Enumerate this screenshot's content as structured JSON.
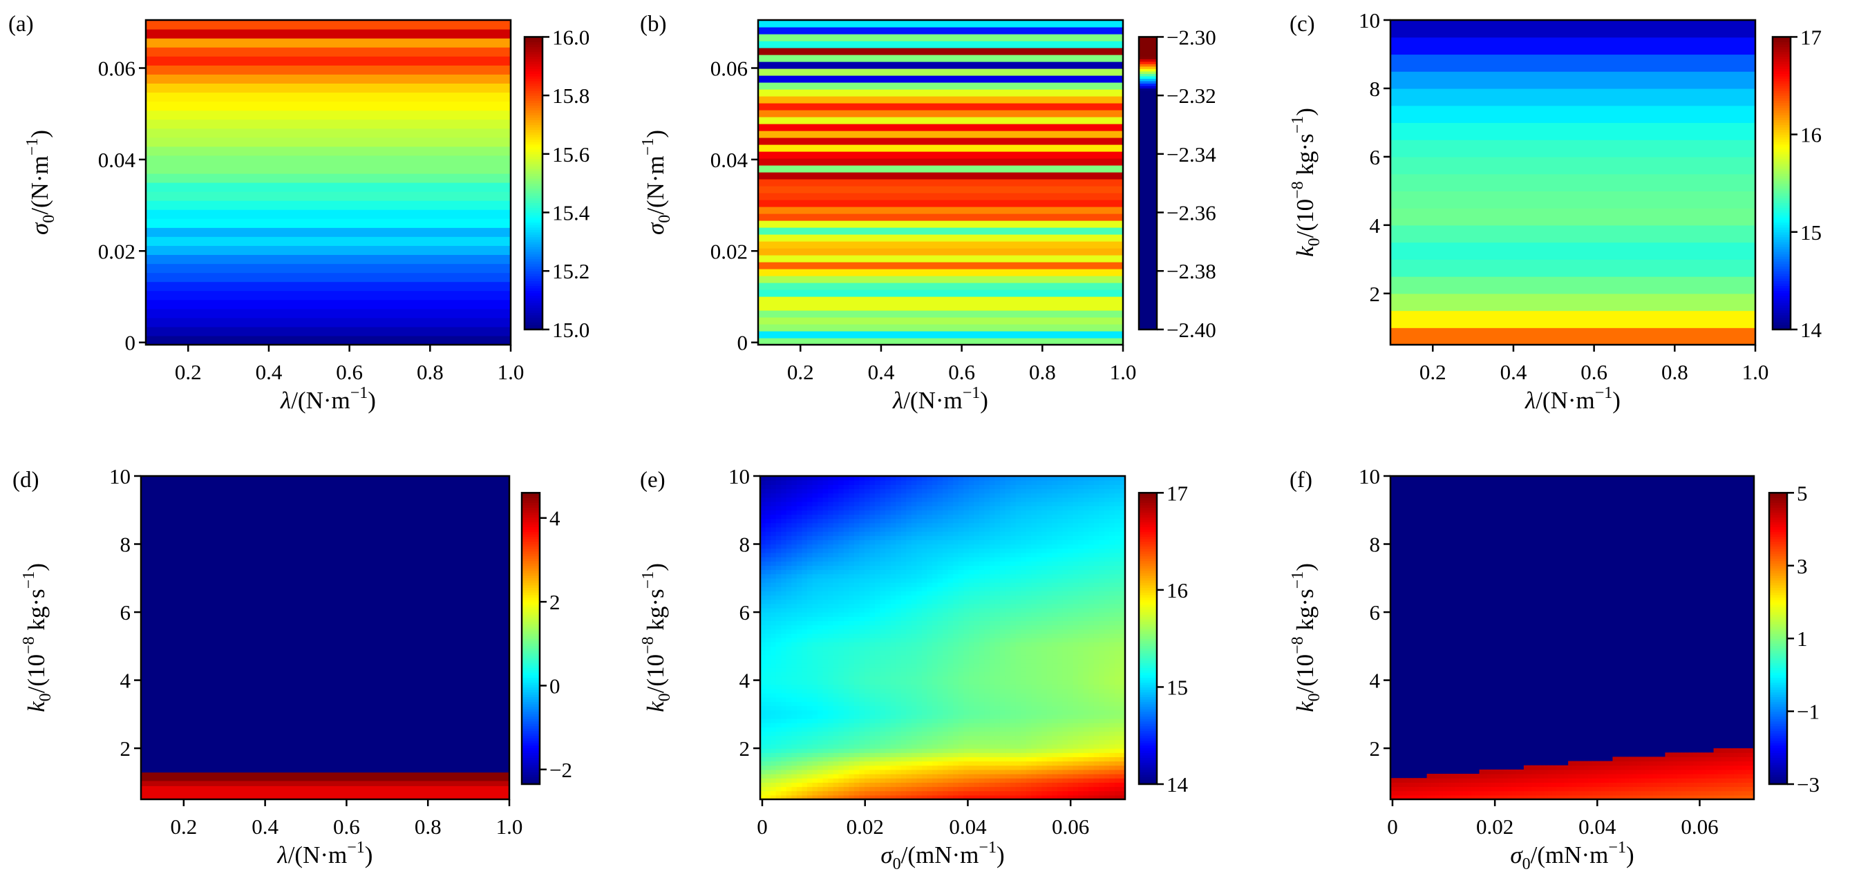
{
  "chart_data": [
    {
      "panel": "(a)",
      "type": "heatmap",
      "colormap": "jet",
      "mode": "rows",
      "xlabel": [
        {
          "t": "λ",
          "s": "i"
        },
        {
          "t": "/(N·m"
        },
        {
          "t": "−1",
          "s": "sup"
        },
        {
          "t": ")"
        }
      ],
      "ylabel": [
        {
          "t": "σ",
          "s": "i"
        },
        {
          "t": "0",
          "s": "sub"
        },
        {
          "t": "/(N·m"
        },
        {
          "t": "−1",
          "s": "sup"
        },
        {
          "t": ")"
        }
      ],
      "xlim": [
        0.095,
        1.0
      ],
      "ylim": [
        -0.0005,
        0.0705
      ],
      "xticks": [
        0.2,
        0.4,
        0.6,
        0.8,
        1.0
      ],
      "xticklabels": [
        "0.2",
        "0.4",
        "0.6",
        "0.8",
        "1.0"
      ],
      "yticks": [
        0,
        0.02,
        0.04,
        0.06
      ],
      "yticklabels": [
        "0",
        "0.02",
        "0.04",
        "0.06"
      ],
      "clim": [
        15.0,
        16.0
      ],
      "cticks": [
        15.0,
        15.2,
        15.4,
        15.6,
        15.8,
        16.0
      ],
      "cticklabels": [
        "15.0",
        "15.2",
        "15.4",
        "15.6",
        "15.8",
        "16.0"
      ],
      "row_values_bottom_to_top": [
        15.02,
        15.05,
        15.08,
        15.1,
        15.12,
        15.14,
        15.16,
        15.2,
        15.22,
        15.25,
        15.3,
        15.34,
        15.3,
        15.37,
        15.36,
        15.4,
        15.43,
        15.42,
        15.47,
        15.5,
        15.5,
        15.52,
        15.55,
        15.56,
        15.58,
        15.6,
        15.63,
        15.64,
        15.67,
        15.72,
        15.78,
        15.84,
        15.8,
        15.72,
        15.92,
        15.8
      ]
    },
    {
      "panel": "(b)",
      "type": "heatmap",
      "colormap": "jet",
      "mode": "rows",
      "color_transition_range": [
        -2.318,
        -2.307
      ],
      "xlabel": [
        {
          "t": "λ",
          "s": "i"
        },
        {
          "t": "/(N·m"
        },
        {
          "t": "−1",
          "s": "sup"
        },
        {
          "t": ")"
        }
      ],
      "ylabel": [
        {
          "t": "σ",
          "s": "i"
        },
        {
          "t": "0",
          "s": "sub"
        },
        {
          "t": "/(N·m"
        },
        {
          "t": "−1",
          "s": "sup"
        },
        {
          "t": ")"
        }
      ],
      "xlim": [
        0.095,
        1.0
      ],
      "ylim": [
        -0.0005,
        0.0705
      ],
      "xticks": [
        0.2,
        0.4,
        0.6,
        0.8,
        1.0
      ],
      "xticklabels": [
        "0.2",
        "0.4",
        "0.6",
        "0.8",
        "1.0"
      ],
      "yticks": [
        0,
        0.02,
        0.04,
        0.06
      ],
      "yticklabels": [
        "0",
        "0.02",
        "0.04",
        "0.06"
      ],
      "clim": [
        -2.4,
        -2.3
      ],
      "cticks": [
        -2.3,
        -2.32,
        -2.34,
        -2.36,
        -2.38,
        -2.4
      ],
      "cticklabels": [
        "−2.30",
        "−2.32",
        "−2.34",
        "−2.36",
        "−2.38",
        "−2.40"
      ],
      "row_values_bottom_to_top": [
        -2.3125,
        -2.3141,
        -2.3123,
        -2.312,
        -2.3125,
        -2.3114,
        -2.3114,
        -2.3134,
        -2.3131,
        -2.312,
        -2.3109,
        -2.3094,
        -2.3114,
        -2.3103,
        -2.3105,
        -2.3114,
        -2.3131,
        -2.3114,
        -2.3092,
        -2.3098,
        -2.3087,
        -2.309,
        -2.3092,
        -2.309,
        -2.3076,
        -2.3125,
        -2.3079,
        -2.3083,
        -2.3109,
        -2.3079,
        -2.3103,
        -2.3083,
        -2.3114,
        -2.3098,
        -2.3087,
        -2.3103,
        -2.3114,
        -2.3125,
        -2.3169,
        -2.312,
        -2.3175,
        -2.3125,
        -2.3073,
        -2.3136,
        -2.3125,
        -2.3164,
        -2.3141
      ]
    },
    {
      "panel": "(c)",
      "type": "heatmap",
      "colormap": "jet",
      "mode": "rows",
      "xlabel": [
        {
          "t": "λ",
          "s": "i"
        },
        {
          "t": "/(N·m"
        },
        {
          "t": "−1",
          "s": "sup"
        },
        {
          "t": ")"
        }
      ],
      "ylabel": [
        {
          "t": "k",
          "s": "i"
        },
        {
          "t": "0",
          "s": "sub"
        },
        {
          "t": "/(10"
        },
        {
          "t": "−8",
          "s": "sup"
        },
        {
          "t": " kg·s"
        },
        {
          "t": "−1",
          "s": "sup"
        },
        {
          "t": ")"
        }
      ],
      "xlim": [
        0.095,
        1.0
      ],
      "ylim": [
        0.5,
        10
      ],
      "xticks": [
        0.2,
        0.4,
        0.6,
        0.8,
        1.0
      ],
      "xticklabels": [
        "0.2",
        "0.4",
        "0.6",
        "0.8",
        "1.0"
      ],
      "yticks": [
        2,
        4,
        6,
        8,
        10
      ],
      "yticklabels": [
        "2",
        "4",
        "6",
        "8",
        "10"
      ],
      "clim": [
        14,
        17
      ],
      "cticks": [
        14,
        15,
        16,
        17
      ],
      "cticklabels": [
        "14",
        "15",
        "16",
        "17"
      ],
      "row_values_bottom_to_top": [
        16.3,
        15.9,
        15.6,
        15.45,
        15.3,
        15.25,
        15.35,
        15.45,
        15.42,
        15.38,
        15.33,
        15.28,
        15.2,
        15.08,
        14.98,
        14.85,
        14.65,
        14.4,
        14.2
      ]
    },
    {
      "panel": "(d)",
      "type": "heatmap",
      "colormap": "jet",
      "mode": "bands",
      "xlabel": [
        {
          "t": "λ",
          "s": "i"
        },
        {
          "t": "/(N·m"
        },
        {
          "t": "−1",
          "s": "sup"
        },
        {
          "t": ")"
        }
      ],
      "ylabel": [
        {
          "t": "k",
          "s": "i"
        },
        {
          "t": "0",
          "s": "sub"
        },
        {
          "t": "/(10"
        },
        {
          "t": "−8",
          "s": "sup"
        },
        {
          "t": " kg·s"
        },
        {
          "t": "−1",
          "s": "sup"
        },
        {
          "t": ")"
        }
      ],
      "xlim": [
        0.095,
        1.0
      ],
      "ylim": [
        0.5,
        10
      ],
      "xticks": [
        0.2,
        0.4,
        0.6,
        0.8,
        1.0
      ],
      "xticklabels": [
        "0.2",
        "0.4",
        "0.6",
        "0.8",
        "1.0"
      ],
      "yticks": [
        2,
        4,
        6,
        8,
        10
      ],
      "yticklabels": [
        "2",
        "4",
        "6",
        "8",
        "10"
      ],
      "clim": [
        -2.35,
        4.6
      ],
      "cticks": [
        -2,
        0,
        2,
        4
      ],
      "cticklabels": [
        "−2",
        "0",
        "2",
        "4"
      ],
      "bands": [
        {
          "k_from": 0.5,
          "k_to": 0.9,
          "value": 3.9
        },
        {
          "k_from": 0.9,
          "k_to": 1.05,
          "value": 4.2
        },
        {
          "k_from": 1.05,
          "k_to": 1.3,
          "value": 4.55
        },
        {
          "k_from": 1.3,
          "k_to": 10,
          "value": -2.4
        }
      ]
    },
    {
      "panel": "(e)",
      "type": "heatmap",
      "colormap": "jet",
      "mode": "grid",
      "xlabel": [
        {
          "t": "σ",
          "s": "i"
        },
        {
          "t": "0",
          "s": "sub"
        },
        {
          "t": "/(mN·m"
        },
        {
          "t": "−1",
          "s": "sup"
        },
        {
          "t": ")"
        }
      ],
      "ylabel": [
        {
          "t": "k",
          "s": "i"
        },
        {
          "t": "0",
          "s": "sub"
        },
        {
          "t": "/(10"
        },
        {
          "t": "−8",
          "s": "sup"
        },
        {
          "t": " kg·s"
        },
        {
          "t": "−1",
          "s": "sup"
        },
        {
          "t": ")"
        }
      ],
      "xlim": [
        -0.0004,
        0.0706
      ],
      "ylim": [
        0.5,
        10
      ],
      "xticks": [
        0,
        0.02,
        0.04,
        0.06
      ],
      "xticklabels": [
        "0",
        "0.02",
        "0.04",
        "0.06"
      ],
      "yticks": [
        2,
        4,
        6,
        8,
        10
      ],
      "yticklabels": [
        "2",
        "4",
        "6",
        "8",
        "10"
      ],
      "clim": [
        14,
        17
      ],
      "cticks": [
        14,
        15,
        16,
        17
      ],
      "cticklabels": [
        "14",
        "15",
        "16",
        "17"
      ],
      "grid_x": [
        0,
        0.01,
        0.02,
        0.03,
        0.04,
        0.05,
        0.06,
        0.07
      ],
      "grid_y": [
        0.5,
        1,
        1.5,
        2,
        3,
        4,
        5,
        6,
        7,
        8,
        9,
        10
      ],
      "grid_values": [
        [
          15.9,
          16.2,
          16.4,
          16.5,
          16.6,
          16.6,
          16.7,
          16.8
        ],
        [
          15.7,
          15.9,
          16.1,
          16.2,
          16.3,
          16.4,
          16.5,
          16.6
        ],
        [
          15.4,
          15.6,
          15.8,
          15.9,
          16.0,
          16.0,
          16.1,
          16.2
        ],
        [
          15.2,
          15.3,
          15.4,
          15.5,
          15.6,
          15.6,
          15.7,
          15.8
        ],
        [
          15.05,
          15.1,
          15.2,
          15.3,
          15.4,
          15.45,
          15.5,
          15.55
        ],
        [
          15.15,
          15.2,
          15.3,
          15.35,
          15.45,
          15.5,
          15.55,
          15.65
        ],
        [
          15.1,
          15.2,
          15.25,
          15.3,
          15.4,
          15.5,
          15.55,
          15.6
        ],
        [
          15.0,
          15.05,
          15.1,
          15.2,
          15.3,
          15.35,
          15.4,
          15.45
        ],
        [
          14.8,
          14.95,
          15.0,
          15.05,
          15.15,
          15.2,
          15.25,
          15.3
        ],
        [
          14.5,
          14.7,
          14.85,
          14.95,
          15.0,
          15.05,
          15.1,
          15.15
        ],
        [
          14.3,
          14.45,
          14.6,
          14.75,
          14.85,
          14.95,
          15.0,
          15.05
        ],
        [
          14.1,
          14.25,
          14.4,
          14.55,
          14.7,
          14.8,
          14.85,
          14.9
        ]
      ]
    },
    {
      "panel": "(f)",
      "type": "heatmap",
      "colormap": "jet",
      "mode": "boundary",
      "xlabel": [
        {
          "t": "σ",
          "s": "i"
        },
        {
          "t": "0",
          "s": "sub"
        },
        {
          "t": "/(mN·m"
        },
        {
          "t": "−1",
          "s": "sup"
        },
        {
          "t": ")"
        }
      ],
      "ylabel": [
        {
          "t": "k",
          "s": "i"
        },
        {
          "t": "0",
          "s": "sub"
        },
        {
          "t": "/(10"
        },
        {
          "t": "−8",
          "s": "sup"
        },
        {
          "t": " kg·s"
        },
        {
          "t": "−1",
          "s": "sup"
        },
        {
          "t": ")"
        }
      ],
      "xlim": [
        -0.0004,
        0.0706
      ],
      "ylim": [
        0.5,
        10
      ],
      "xticks": [
        0,
        0.02,
        0.04,
        0.06
      ],
      "xticklabels": [
        "0",
        "0.02",
        "0.04",
        "0.06"
      ],
      "yticks": [
        2,
        4,
        6,
        8,
        10
      ],
      "yticklabels": [
        "2",
        "4",
        "6",
        "8",
        "10"
      ],
      "clim": [
        -3,
        5
      ],
      "cticks": [
        -3,
        -1,
        1,
        3,
        5
      ],
      "cticklabels": [
        "−3",
        "−1",
        "1",
        "3",
        "5"
      ],
      "boundary_sigma": [
        0,
        0.02,
        0.04,
        0.06,
        0.07
      ],
      "boundary_k": [
        1.1,
        1.35,
        1.65,
        1.9,
        2.05
      ],
      "value_above": -3,
      "value_near_boundary": 4.5,
      "value_bottom_left": 4.0,
      "value_bottom_right": 3.2
    }
  ]
}
